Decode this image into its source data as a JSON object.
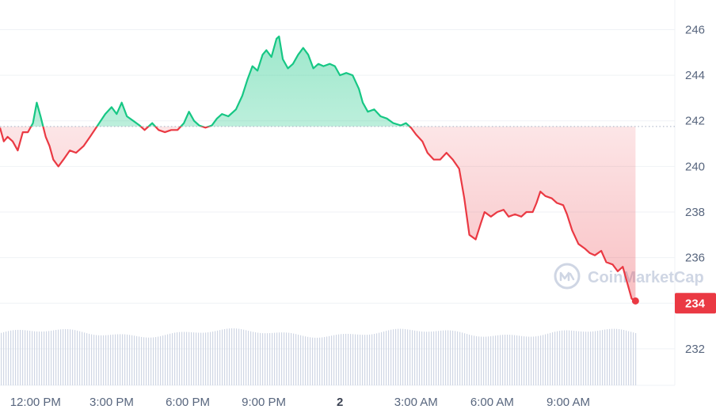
{
  "chart_data": {
    "type": "area",
    "baseline": 241.75,
    "ylim": [
      230.4,
      247.3
    ],
    "y_ticks": [
      "232",
      "234",
      "236",
      "238",
      "240",
      "242",
      "244",
      "246"
    ],
    "x_ticks": [
      "12:00 PM",
      "3:00 PM",
      "6:00 PM",
      "9:00 PM",
      "2",
      "3:00 AM",
      "6:00 AM",
      "9:00 AM"
    ],
    "x_ticks_bold": [
      false,
      false,
      false,
      false,
      true,
      false,
      false,
      false
    ],
    "x_tick_hours": [
      12,
      15,
      18,
      21,
      24,
      27,
      30,
      33
    ],
    "xlim_hours": [
      10.6,
      37.2
    ],
    "current_price_label": "234",
    "watermark": "CoinMarketCap",
    "colors": {
      "up": "#16c784",
      "down": "#ea3943",
      "grid": "#eff2f5",
      "volume": "#cfd6e4",
      "text": "#58667e"
    },
    "price_series": [
      [
        10.6,
        241.7
      ],
      [
        10.75,
        241.1
      ],
      [
        10.9,
        241.3
      ],
      [
        11.1,
        241.1
      ],
      [
        11.3,
        240.7
      ],
      [
        11.5,
        241.5
      ],
      [
        11.7,
        241.5
      ],
      [
        11.9,
        241.9
      ],
      [
        12.05,
        242.8
      ],
      [
        12.2,
        242.2
      ],
      [
        12.4,
        241.3
      ],
      [
        12.55,
        240.9
      ],
      [
        12.7,
        240.3
      ],
      [
        12.9,
        240.0
      ],
      [
        13.1,
        240.3
      ],
      [
        13.35,
        240.7
      ],
      [
        13.6,
        240.6
      ],
      [
        13.9,
        240.9
      ],
      [
        14.15,
        241.3
      ],
      [
        14.45,
        241.8
      ],
      [
        14.75,
        242.3
      ],
      [
        15.0,
        242.6
      ],
      [
        15.2,
        242.3
      ],
      [
        15.4,
        242.8
      ],
      [
        15.6,
        242.2
      ],
      [
        15.85,
        242.0
      ],
      [
        16.1,
        241.8
      ],
      [
        16.3,
        241.6
      ],
      [
        16.6,
        241.9
      ],
      [
        16.85,
        241.6
      ],
      [
        17.1,
        241.5
      ],
      [
        17.35,
        241.6
      ],
      [
        17.6,
        241.6
      ],
      [
        17.85,
        241.9
      ],
      [
        18.05,
        242.4
      ],
      [
        18.25,
        242.0
      ],
      [
        18.45,
        241.8
      ],
      [
        18.7,
        241.7
      ],
      [
        18.95,
        241.8
      ],
      [
        19.15,
        242.1
      ],
      [
        19.35,
        242.3
      ],
      [
        19.6,
        242.2
      ],
      [
        19.9,
        242.5
      ],
      [
        20.15,
        243.1
      ],
      [
        20.35,
        243.8
      ],
      [
        20.55,
        244.4
      ],
      [
        20.75,
        244.2
      ],
      [
        20.95,
        244.9
      ],
      [
        21.1,
        245.1
      ],
      [
        21.3,
        244.8
      ],
      [
        21.5,
        245.6
      ],
      [
        21.6,
        245.7
      ],
      [
        21.75,
        244.7
      ],
      [
        21.95,
        244.3
      ],
      [
        22.15,
        244.5
      ],
      [
        22.35,
        244.9
      ],
      [
        22.55,
        245.2
      ],
      [
        22.75,
        244.9
      ],
      [
        22.95,
        244.3
      ],
      [
        23.15,
        244.5
      ],
      [
        23.35,
        244.4
      ],
      [
        23.6,
        244.5
      ],
      [
        23.8,
        244.4
      ],
      [
        24.0,
        244.0
      ],
      [
        24.25,
        244.1
      ],
      [
        24.5,
        244.0
      ],
      [
        24.75,
        243.4
      ],
      [
        24.9,
        242.8
      ],
      [
        25.1,
        242.4
      ],
      [
        25.35,
        242.5
      ],
      [
        25.6,
        242.2
      ],
      [
        25.85,
        242.1
      ],
      [
        26.1,
        241.9
      ],
      [
        26.4,
        241.8
      ],
      [
        26.6,
        241.9
      ],
      [
        26.8,
        241.7
      ],
      [
        27.0,
        241.4
      ],
      [
        27.25,
        241.1
      ],
      [
        27.45,
        240.6
      ],
      [
        27.7,
        240.3
      ],
      [
        27.95,
        240.3
      ],
      [
        28.2,
        240.6
      ],
      [
        28.45,
        240.3
      ],
      [
        28.7,
        239.9
      ],
      [
        28.9,
        238.6
      ],
      [
        29.1,
        237.0
      ],
      [
        29.35,
        236.8
      ],
      [
        29.55,
        237.5
      ],
      [
        29.7,
        238.0
      ],
      [
        29.95,
        237.8
      ],
      [
        30.2,
        238.0
      ],
      [
        30.45,
        238.1
      ],
      [
        30.65,
        237.8
      ],
      [
        30.9,
        237.9
      ],
      [
        31.15,
        237.8
      ],
      [
        31.35,
        238.0
      ],
      [
        31.6,
        238.0
      ],
      [
        31.75,
        238.4
      ],
      [
        31.9,
        238.9
      ],
      [
        32.1,
        238.7
      ],
      [
        32.35,
        238.6
      ],
      [
        32.55,
        238.4
      ],
      [
        32.8,
        238.3
      ],
      [
        32.95,
        237.9
      ],
      [
        33.15,
        237.2
      ],
      [
        33.4,
        236.6
      ],
      [
        33.65,
        236.4
      ],
      [
        33.85,
        236.2
      ],
      [
        34.05,
        236.1
      ],
      [
        34.3,
        236.3
      ],
      [
        34.5,
        235.8
      ],
      [
        34.75,
        235.7
      ],
      [
        34.95,
        235.4
      ],
      [
        35.15,
        235.6
      ],
      [
        35.3,
        235.0
      ],
      [
        35.5,
        234.2
      ],
      [
        35.65,
        234.1
      ]
    ]
  }
}
